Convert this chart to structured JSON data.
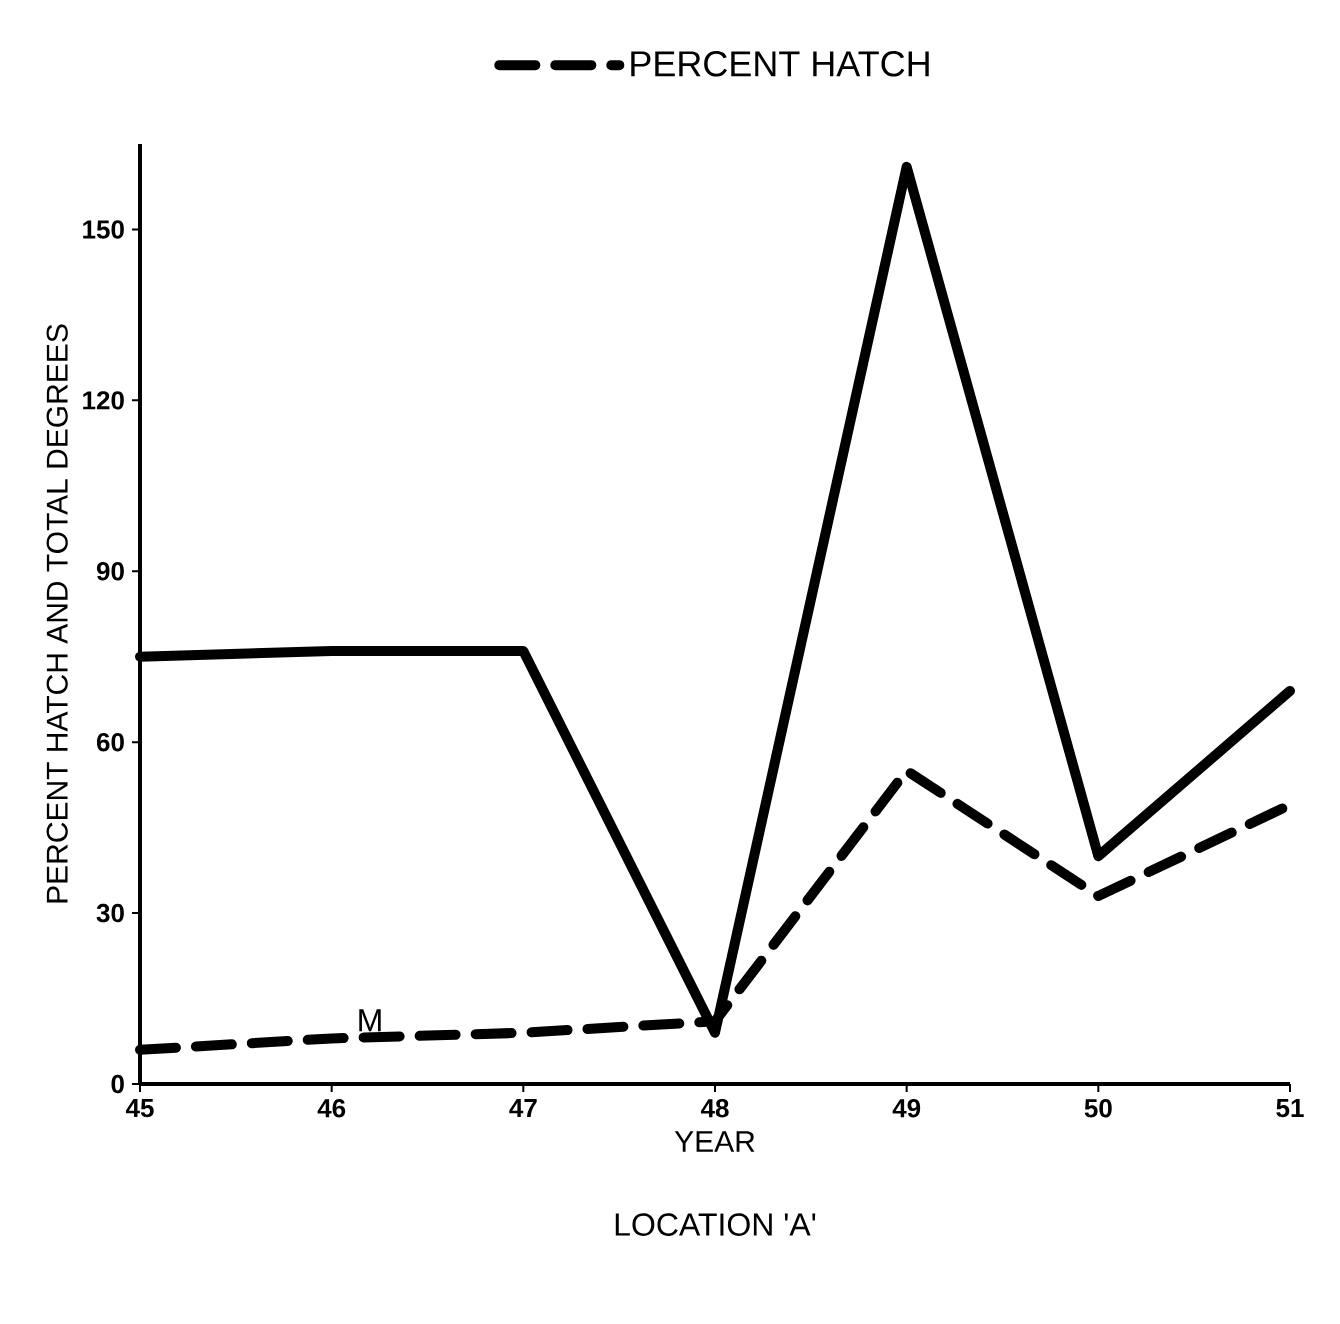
{
  "chart_data": {
    "type": "line",
    "title": "LOCATION 'A'",
    "xlabel": "YEAR",
    "ylabel": "PERCENT HATCH AND TOTAL DEGREES",
    "x": [
      45,
      46,
      47,
      48,
      49,
      50,
      51
    ],
    "series": [
      {
        "color": "#000000",
        "line_style": "solid",
        "values": [
          75,
          76,
          76,
          9,
          161,
          40,
          69
        ]
      },
      {
        "name": "PERCENT HATCH",
        "color": "#000000",
        "line_style": "dashed",
        "values": [
          6,
          8,
          9,
          11,
          55,
          33,
          49
        ]
      }
    ],
    "xlim": [
      45,
      51
    ],
    "xticks": [
      45,
      46,
      47,
      48,
      49,
      50,
      51
    ],
    "ylim": [
      0,
      165
    ],
    "yticks": [
      0,
      30,
      60,
      90,
      120,
      150
    ],
    "annotations": [
      {
        "text": "M",
        "x": 46.2,
        "y": 8
      }
    ],
    "legend": "top",
    "grid": false,
    "marker": "none"
  }
}
